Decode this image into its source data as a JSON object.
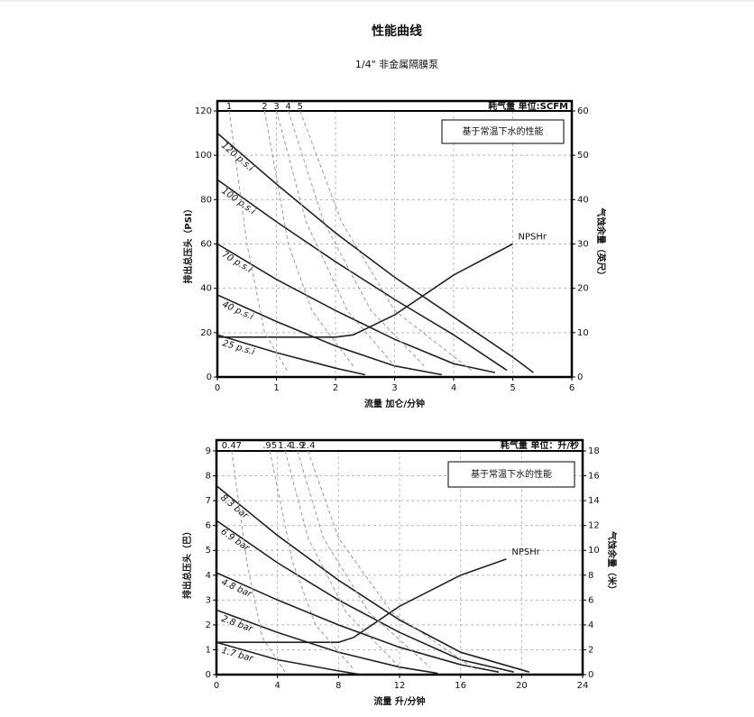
{
  "title": "性能曲线",
  "subtitle": "1/4\" 非金属隔膜泵",
  "chart_data": [
    {
      "type": "line",
      "xlabel": "流量 加仑/分钟",
      "ylabel": "排出总压头（PSI）",
      "y2label": "气蚀余量（英尺）",
      "header_label": "耗气量 单位:SCFM",
      "note": "基于常温下水的性能",
      "xlim": [
        0,
        6
      ],
      "xticks": [
        0,
        1,
        2,
        3,
        4,
        5,
        6
      ],
      "ylim": [
        0,
        120
      ],
      "yticks": [
        0,
        20,
        40,
        60,
        80,
        100,
        120
      ],
      "y2lim": [
        0,
        60
      ],
      "y2ticks": [
        0,
        10,
        20,
        30,
        40,
        50,
        60
      ],
      "grid": true,
      "series": [
        {
          "name": "120 p.s.i",
          "color": "#222222",
          "dashed": false,
          "x": [
            0,
            1,
            2,
            3,
            4,
            5,
            5.35
          ],
          "values": [
            110,
            87,
            65,
            45,
            27,
            9,
            2
          ]
        },
        {
          "name": "100 p.s.i",
          "color": "#222222",
          "dashed": false,
          "x": [
            0,
            1,
            2,
            3,
            4,
            4.9
          ],
          "values": [
            89,
            70,
            52,
            35,
            19,
            3
          ]
        },
        {
          "name": "70 p.s.i",
          "color": "#222222",
          "dashed": false,
          "x": [
            0,
            1,
            2,
            3,
            4,
            4.7
          ],
          "values": [
            60,
            44,
            30,
            17,
            6,
            2
          ]
        },
        {
          "name": "40 p.s.i",
          "color": "#222222",
          "dashed": false,
          "x": [
            0,
            1,
            2,
            3,
            3.8
          ],
          "values": [
            37,
            25,
            14,
            5,
            1
          ]
        },
        {
          "name": "25 p.s.i",
          "color": "#222222",
          "dashed": false,
          "x": [
            0,
            1,
            2,
            2.5
          ],
          "values": [
            19,
            11,
            4,
            1
          ]
        },
        {
          "name": "NPSHr",
          "color": "#222222",
          "dashed": false,
          "axis": "y2",
          "x": [
            0,
            2,
            2.3,
            3,
            4,
            5
          ],
          "values": [
            9,
            9,
            9.5,
            14,
            23,
            30
          ]
        },
        {
          "name": "1",
          "color": "#999999",
          "dashed": true,
          "x": [
            0.2,
            0.5,
            0.8,
            1.2
          ],
          "values": [
            120,
            60,
            20,
            2
          ]
        },
        {
          "name": "2",
          "color": "#999999",
          "dashed": true,
          "x": [
            0.8,
            1.2,
            1.6,
            2.3
          ],
          "values": [
            120,
            60,
            30,
            5
          ]
        },
        {
          "name": "3",
          "color": "#999999",
          "dashed": true,
          "x": [
            1.0,
            1.5,
            2.2,
            3.0
          ],
          "values": [
            120,
            70,
            30,
            5
          ]
        },
        {
          "name": "4",
          "color": "#999999",
          "dashed": true,
          "x": [
            1.2,
            1.8,
            2.6,
            3.5
          ],
          "values": [
            120,
            70,
            30,
            5
          ]
        },
        {
          "name": "5",
          "color": "#999999",
          "dashed": true,
          "x": [
            1.4,
            2.1,
            3.0,
            4.3
          ],
          "values": [
            120,
            70,
            30,
            3
          ]
        }
      ]
    },
    {
      "type": "line",
      "xlabel": "流量 升/分钟",
      "ylabel": "排出总压头（巴）",
      "y2label": "气蚀余量（米）",
      "header_label": "耗气量 单位：升/秒",
      "note": "基于常温下水的性能",
      "xlim": [
        0,
        24
      ],
      "xticks": [
        0,
        4,
        8,
        12,
        16,
        20,
        24
      ],
      "ylim": [
        0,
        9
      ],
      "yticks": [
        0,
        1,
        2,
        3,
        4,
        5,
        6,
        7,
        8,
        9
      ],
      "y2lim": [
        0,
        18
      ],
      "y2ticks": [
        0,
        2,
        4,
        6,
        8,
        10,
        12,
        14,
        16,
        18
      ],
      "grid": true,
      "series": [
        {
          "name": "8.3 bar",
          "color": "#222222",
          "dashed": false,
          "x": [
            0,
            4,
            8,
            12,
            16,
            20.5
          ],
          "values": [
            7.6,
            5.6,
            3.8,
            2.2,
            0.9,
            0.1
          ]
        },
        {
          "name": "6.9 bar",
          "color": "#222222",
          "dashed": false,
          "x": [
            0,
            4,
            8,
            12,
            16,
            19.5
          ],
          "values": [
            6.2,
            4.5,
            3.0,
            1.7,
            0.6,
            0.1
          ]
        },
        {
          "name": "4.8 bar",
          "color": "#222222",
          "dashed": false,
          "x": [
            0,
            4,
            8,
            12,
            16,
            18.5
          ],
          "values": [
            4.1,
            3.0,
            2.0,
            1.1,
            0.4,
            0.1
          ]
        },
        {
          "name": "2.8 bar",
          "color": "#222222",
          "dashed": false,
          "x": [
            0,
            4,
            8,
            12,
            14.5
          ],
          "values": [
            2.6,
            1.7,
            0.9,
            0.3,
            0.05
          ]
        },
        {
          "name": "1.7 bar",
          "color": "#222222",
          "dashed": false,
          "x": [
            0,
            4,
            8,
            9.5
          ],
          "values": [
            1.3,
            0.6,
            0.15,
            0
          ]
        },
        {
          "name": "NPSHr",
          "color": "#222222",
          "dashed": false,
          "axis": "y2",
          "x": [
            0,
            8,
            9,
            12,
            16,
            19
          ],
          "values": [
            2.6,
            2.6,
            3,
            5.5,
            8,
            9.3
          ]
        },
        {
          "name": "0.47",
          "color": "#999999",
          "dashed": true,
          "x": [
            1,
            2,
            3,
            4.5
          ],
          "values": [
            9,
            4.5,
            1.5,
            0.1
          ]
        },
        {
          "name": ".95",
          "color": "#999999",
          "dashed": true,
          "x": [
            3.5,
            5,
            6.5,
            9
          ],
          "values": [
            9,
            4.5,
            2,
            0.2
          ]
        },
        {
          "name": "1.4",
          "color": "#999999",
          "dashed": true,
          "x": [
            4.5,
            6,
            8.5,
            12
          ],
          "values": [
            9,
            5.5,
            2.5,
            0.3
          ]
        },
        {
          "name": "1.9",
          "color": "#999999",
          "dashed": true,
          "x": [
            5.3,
            7,
            10,
            14
          ],
          "values": [
            9,
            5.5,
            2.5,
            0.3
          ]
        },
        {
          "name": "2.4",
          "color": "#999999",
          "dashed": true,
          "x": [
            6,
            8,
            11.5,
            17
          ],
          "values": [
            9,
            5.5,
            2.5,
            0.2
          ]
        }
      ]
    }
  ]
}
